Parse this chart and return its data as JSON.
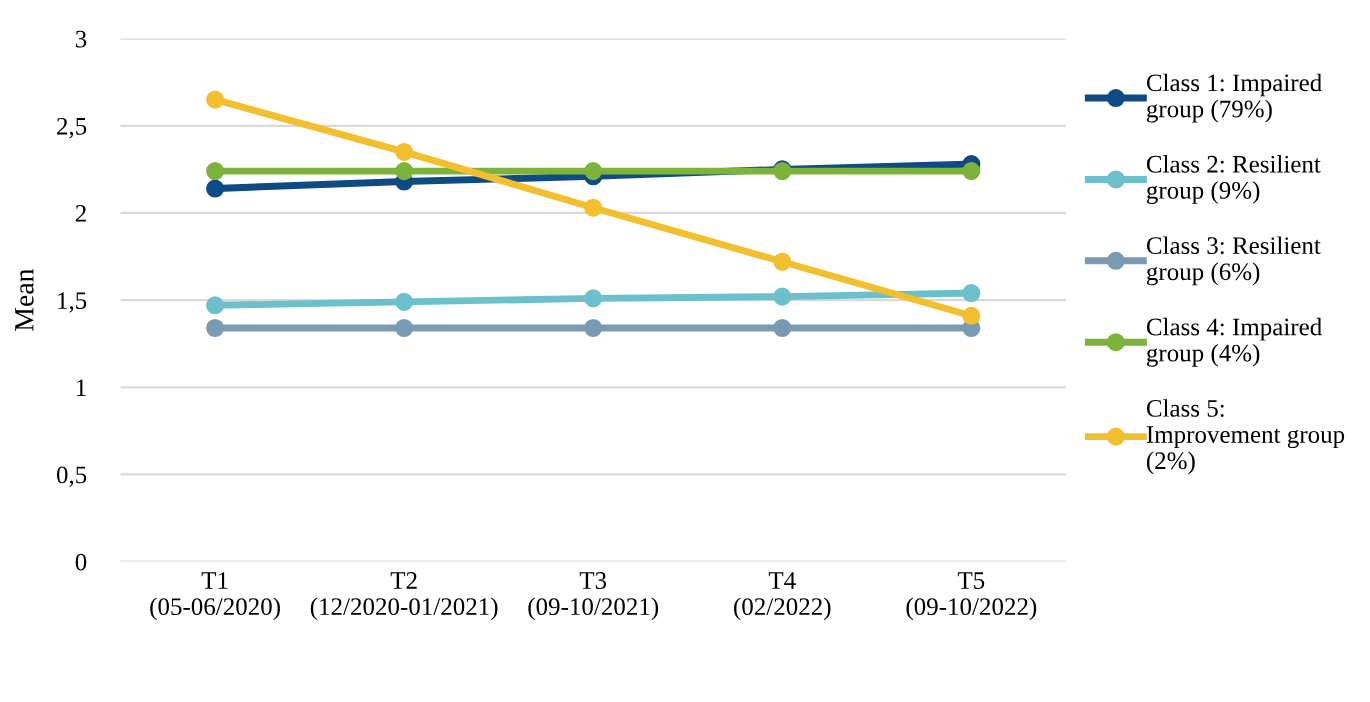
{
  "chart_data": {
    "type": "line",
    "ylabel": "Mean",
    "categories": [
      "T1\n(05-06/2020)",
      "T2\n(12/2020-01/2021)",
      "T3\n(09-10/2021)",
      "T4\n(02/2022)",
      "T5\n(09-10/2022)"
    ],
    "series": [
      {
        "name": "Class 1: Impaired\ngroup (79%)",
        "color": "#0e4a84",
        "values": [
          2.14,
          2.18,
          2.21,
          2.25,
          2.28
        ]
      },
      {
        "name": "Class 2: Resilient\ngroup (9%)",
        "color": "#6cc0cb",
        "values": [
          1.47,
          1.49,
          1.51,
          1.52,
          1.54
        ]
      },
      {
        "name": "Class 3: Resilient\ngroup (6%)",
        "color": "#7a9ab2",
        "values": [
          1.34,
          1.34,
          1.34,
          1.34,
          1.34
        ]
      },
      {
        "name": "Class 4: Impaired\ngroup (4%)",
        "color": "#7db33a",
        "values": [
          2.24,
          2.24,
          2.24,
          2.24,
          2.24
        ]
      },
      {
        "name": "Class 5:\nImprovement group\n(2%)",
        "color": "#f2bf2e",
        "values": [
          2.65,
          2.35,
          2.03,
          1.72,
          1.41
        ]
      }
    ],
    "ylim": [
      0,
      3
    ],
    "yticks": [
      {
        "value": 0,
        "label": "0"
      },
      {
        "value": 0.5,
        "label": "0,5"
      },
      {
        "value": 1,
        "label": "1"
      },
      {
        "value": 1.5,
        "label": "1,5"
      },
      {
        "value": 2,
        "label": "2"
      },
      {
        "value": 2.5,
        "label": "2,5"
      },
      {
        "value": 3,
        "label": "3"
      }
    ],
    "grid": "y",
    "legend": "right",
    "marker": "circle",
    "line_style": "solid"
  }
}
